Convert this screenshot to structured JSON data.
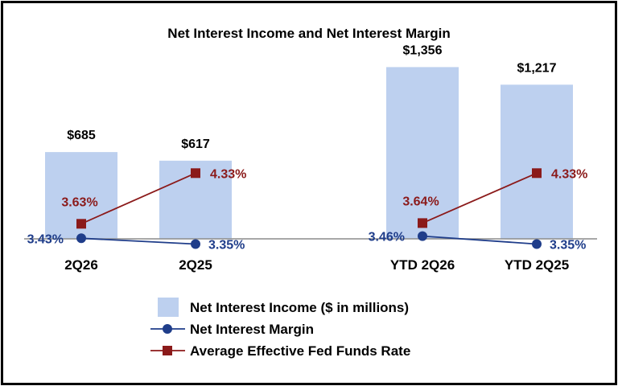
{
  "chart_data": {
    "type": "bar",
    "title": "Net Interest Income and Net Interest Margin",
    "categories": [
      "2Q26",
      "2Q25",
      "YTD 2Q26",
      "YTD 2Q25"
    ],
    "series": [
      {
        "name": "Net Interest Income ($ in millions)",
        "type": "bar",
        "values": [
          685,
          617,
          1356,
          1217
        ],
        "labels": [
          "$685",
          "$617",
          "$1,356",
          "$1,217"
        ],
        "color": "#bdd0ef"
      },
      {
        "name": "Net Interest Margin",
        "type": "line",
        "marker": "circle",
        "values": [
          3.43,
          3.35,
          3.46,
          3.35
        ],
        "labels": [
          "3.43%",
          "3.35%",
          "3.46%",
          "3.35%"
        ],
        "color": "#1f3d8a",
        "segments": [
          [
            0,
            1
          ],
          [
            2,
            3
          ]
        ]
      },
      {
        "name": "Average Effective Fed Funds Rate",
        "type": "line",
        "marker": "square",
        "values": [
          3.63,
          4.33,
          3.64,
          4.33
        ],
        "labels": [
          "3.63%",
          "4.33%",
          "3.64%",
          "4.33%"
        ],
        "color": "#8b1a1a",
        "segments": [
          [
            0,
            1
          ],
          [
            2,
            3
          ]
        ]
      }
    ],
    "legend_position": "bottom-center",
    "grid": false
  }
}
